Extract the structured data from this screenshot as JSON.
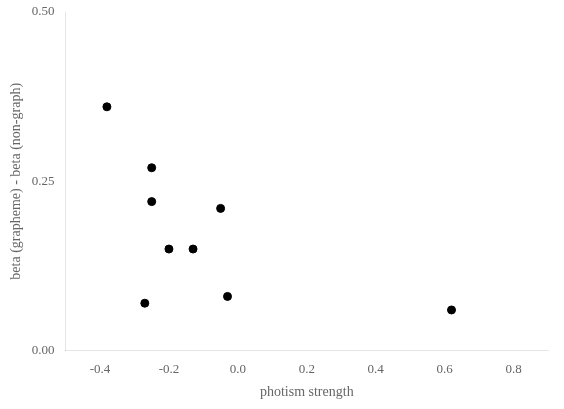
{
  "chart_data": {
    "type": "scatter",
    "x": [
      -0.38,
      -0.25,
      -0.25,
      -0.2,
      -0.27,
      -0.13,
      -0.05,
      -0.03,
      0.62
    ],
    "values": [
      0.36,
      0.27,
      0.22,
      0.15,
      0.07,
      0.15,
      0.21,
      0.08,
      0.06
    ],
    "x_label": "photism strength",
    "y_label": "beta (grapheme) - beta (non-graph)",
    "xlim": [
      -0.5,
      0.9
    ],
    "ylim": [
      0.0,
      0.5
    ],
    "xticks": [
      -0.4,
      -0.2,
      {
        "value": 0,
        "label": "0.0"
      },
      0.2,
      0.4,
      0.6,
      0.8
    ],
    "yticks": [
      {
        "value": 0,
        "label": "0.00"
      },
      0.25,
      {
        "value": 0.5,
        "label": "0.50"
      }
    ],
    "color": "#000000",
    "marker": "circle",
    "grid": false
  }
}
